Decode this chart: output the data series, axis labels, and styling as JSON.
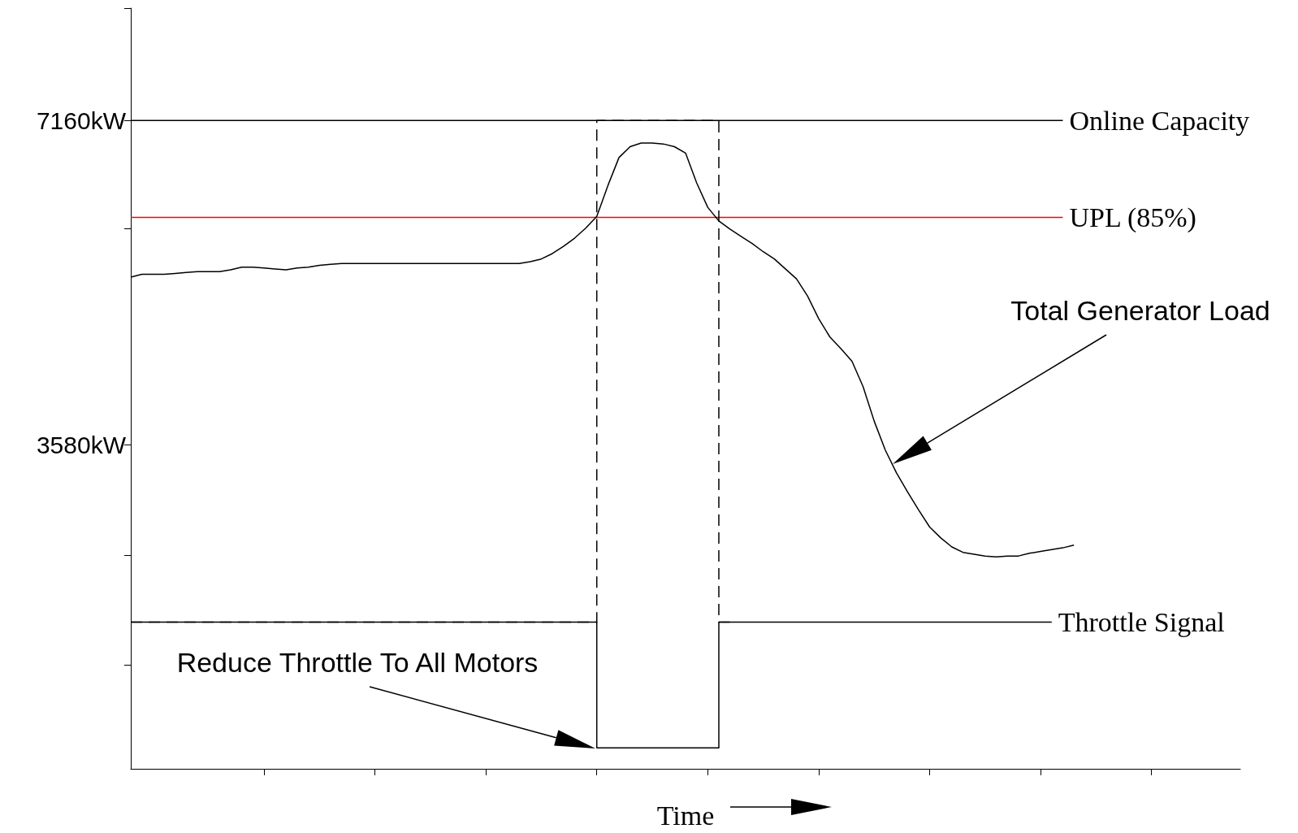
{
  "chart_data": {
    "type": "line",
    "xlabel": "Time",
    "categories": [
      null,
      null,
      null,
      null,
      null,
      null,
      null,
      null,
      null,
      null,
      null,
      null,
      null,
      null,
      null,
      null,
      null,
      null,
      null,
      null,
      null,
      null,
      null,
      null,
      null,
      null,
      null,
      null,
      null,
      null,
      null,
      null,
      null,
      null,
      null,
      null,
      null,
      null,
      null,
      null,
      null,
      null,
      null,
      null,
      null,
      null,
      null,
      null,
      null,
      null,
      null,
      null,
      null,
      null,
      null,
      null,
      null,
      null,
      null,
      null,
      null,
      null,
      null,
      null,
      null,
      null,
      null,
      null,
      null,
      null,
      null,
      null,
      null,
      null,
      null,
      null,
      null,
      null,
      null,
      null,
      null,
      null,
      null,
      null,
      null,
      null,
      null,
      null,
      null,
      null,
      null,
      null,
      null,
      null,
      null,
      null,
      null,
      null,
      null,
      null,
      null
    ],
    "ylim": [
      0,
      8400
    ],
    "yticks": [
      {
        "value": 1150,
        "label": null
      },
      {
        "value": 2360,
        "label": null
      },
      {
        "value": 3580,
        "label": "3580kW"
      },
      {
        "value": 5970,
        "label": null
      },
      {
        "value": 7160,
        "label": "7160kW"
      },
      {
        "value": 8400,
        "label": null
      }
    ],
    "tick_labels": "y",
    "grid": false,
    "legend": false,
    "marker": "none",
    "series": [
      {
        "name": "Online Capacity",
        "color": "#000000",
        "line_style": "solid",
        "values": [
          7160,
          7160,
          7160,
          7160,
          7160,
          7160,
          7160,
          7160,
          7160,
          7160,
          7160,
          7160,
          7160,
          7160,
          7160,
          7160,
          7160,
          7160,
          7160,
          7160,
          7160,
          7160,
          7160,
          7160,
          7160,
          7160,
          7160,
          7160,
          7160,
          7160,
          7160,
          7160,
          7160,
          7160,
          7160,
          7160,
          7160,
          7160,
          7160,
          7160,
          7160,
          7160,
          7160,
          7160,
          7160,
          7160,
          7160,
          7160,
          7160,
          7160,
          7160,
          7160,
          7160,
          7160,
          7160,
          7160,
          7160,
          7160,
          7160,
          7160,
          7160,
          7160,
          7160,
          7160,
          7160,
          7160,
          7160,
          7160,
          7160,
          7160,
          7160,
          7160,
          7160,
          7160,
          7160,
          7160,
          7160,
          7160,
          7160,
          7160,
          7160,
          7160,
          7160,
          7160,
          7160,
          null,
          null,
          null,
          null,
          null,
          null,
          null,
          null,
          null,
          null,
          null,
          null,
          null,
          null,
          null,
          null
        ]
      },
      {
        "name": "UPL (85%)",
        "color": "#ff0000",
        "line_style": "solid",
        "values": [
          6090,
          6090,
          6090,
          6090,
          6090,
          6090,
          6090,
          6090,
          6090,
          6090,
          6090,
          6090,
          6090,
          6090,
          6090,
          6090,
          6090,
          6090,
          6090,
          6090,
          6090,
          6090,
          6090,
          6090,
          6090,
          6090,
          6090,
          6090,
          6090,
          6090,
          6090,
          6090,
          6090,
          6090,
          6090,
          6090,
          6090,
          6090,
          6090,
          6090,
          6090,
          6090,
          6090,
          6090,
          6090,
          6090,
          6090,
          6090,
          6090,
          6090,
          6090,
          6090,
          6090,
          6090,
          6090,
          6090,
          6090,
          6090,
          6090,
          6090,
          6090,
          6090,
          6090,
          6090,
          6090,
          6090,
          6090,
          6090,
          6090,
          6090,
          6090,
          6090,
          6090,
          6090,
          6090,
          6090,
          6090,
          6090,
          6090,
          6090,
          6090,
          6090,
          6090,
          6090,
          6090,
          null,
          null,
          null,
          null,
          null,
          null,
          null,
          null,
          null,
          null,
          null,
          null,
          null,
          null,
          null,
          null
        ]
      },
      {
        "name": "Throttle Signal",
        "type": "step",
        "color": "#000000",
        "line_style": "solid",
        "values": [
          1620,
          1620,
          1620,
          1620,
          1620,
          1620,
          1620,
          1620,
          1620,
          1620,
          1620,
          1620,
          1620,
          1620,
          1620,
          1620,
          1620,
          1620,
          1620,
          1620,
          1620,
          1620,
          1620,
          1620,
          1620,
          1620,
          1620,
          1620,
          1620,
          1620,
          1620,
          1620,
          1620,
          1620,
          1620,
          1620,
          1620,
          1620,
          1620,
          1620,
          1620,
          1620,
          1620,
          230,
          230,
          230,
          230,
          230,
          230,
          230,
          230,
          230,
          230,
          230,
          1620,
          1620,
          1620,
          1620,
          1620,
          1620,
          1620,
          1620,
          1620,
          1620,
          1620,
          1620,
          1620,
          1620,
          1620,
          1620,
          1620,
          1620,
          1620,
          1620,
          1620,
          1620,
          1620,
          1620,
          1620,
          1620,
          1620,
          1620,
          1620,
          1620,
          null,
          null,
          null,
          null,
          null,
          null,
          null,
          null,
          null,
          null,
          null,
          null,
          null,
          null,
          null,
          null,
          null
        ]
      },
      {
        "type": "step",
        "color": "#000000",
        "line_style": "dashed",
        "values": [
          1620,
          1620,
          1620,
          1620,
          1620,
          1620,
          1620,
          1620,
          1620,
          1620,
          1620,
          1620,
          1620,
          1620,
          1620,
          1620,
          1620,
          1620,
          1620,
          1620,
          1620,
          1620,
          1620,
          1620,
          1620,
          1620,
          1620,
          1620,
          1620,
          1620,
          1620,
          1620,
          1620,
          1620,
          1620,
          1620,
          1620,
          1620,
          1620,
          1620,
          1620,
          1620,
          1620,
          7160,
          7160,
          7160,
          7160,
          7160,
          7160,
          7160,
          7160,
          7160,
          7160,
          7160,
          1620,
          null,
          null,
          null,
          null,
          null,
          null,
          null,
          null,
          null,
          null,
          null,
          null,
          null,
          null,
          null,
          null,
          null,
          null,
          null,
          null,
          null,
          null,
          null,
          null,
          null,
          null,
          null,
          null,
          null,
          null,
          null,
          null,
          null,
          null,
          null,
          null,
          null,
          null,
          null,
          null,
          null,
          null,
          null,
          null,
          null,
          null
        ]
      },
      {
        "color": "#000000",
        "line_style": "solid",
        "values": [
          5430,
          5460,
          5460,
          5460,
          5470,
          5480,
          5490,
          5490,
          5490,
          5510,
          5540,
          5540,
          5530,
          5520,
          5510,
          5530,
          5540,
          5560,
          5570,
          5580,
          5580,
          5580,
          5580,
          5580,
          5580,
          5580,
          5580,
          5580,
          5580,
          5580,
          5580,
          5580,
          5580,
          5580,
          5580,
          5580,
          5600,
          5630,
          5690,
          5770,
          5860,
          5970,
          6100,
          6440,
          6750,
          6870,
          6910,
          6910,
          6900,
          6870,
          6800,
          6470,
          6200,
          6050,
          5960,
          5880,
          5800,
          5710,
          5630,
          5520,
          5410,
          5220,
          4970,
          4770,
          4640,
          4500,
          4220,
          3840,
          3520,
          3270,
          3060,
          2860,
          2670,
          2550,
          2450,
          2390,
          2370,
          2350,
          2340,
          2350,
          2350,
          2380,
          2400,
          2420,
          2440,
          2470,
          null,
          null,
          null,
          null,
          null,
          null,
          null,
          null,
          null,
          null,
          null,
          null,
          null,
          null,
          null
        ]
      }
    ],
    "annotations": [
      "Total Generator Load",
      "Reduce Throttle To All Motors"
    ]
  }
}
